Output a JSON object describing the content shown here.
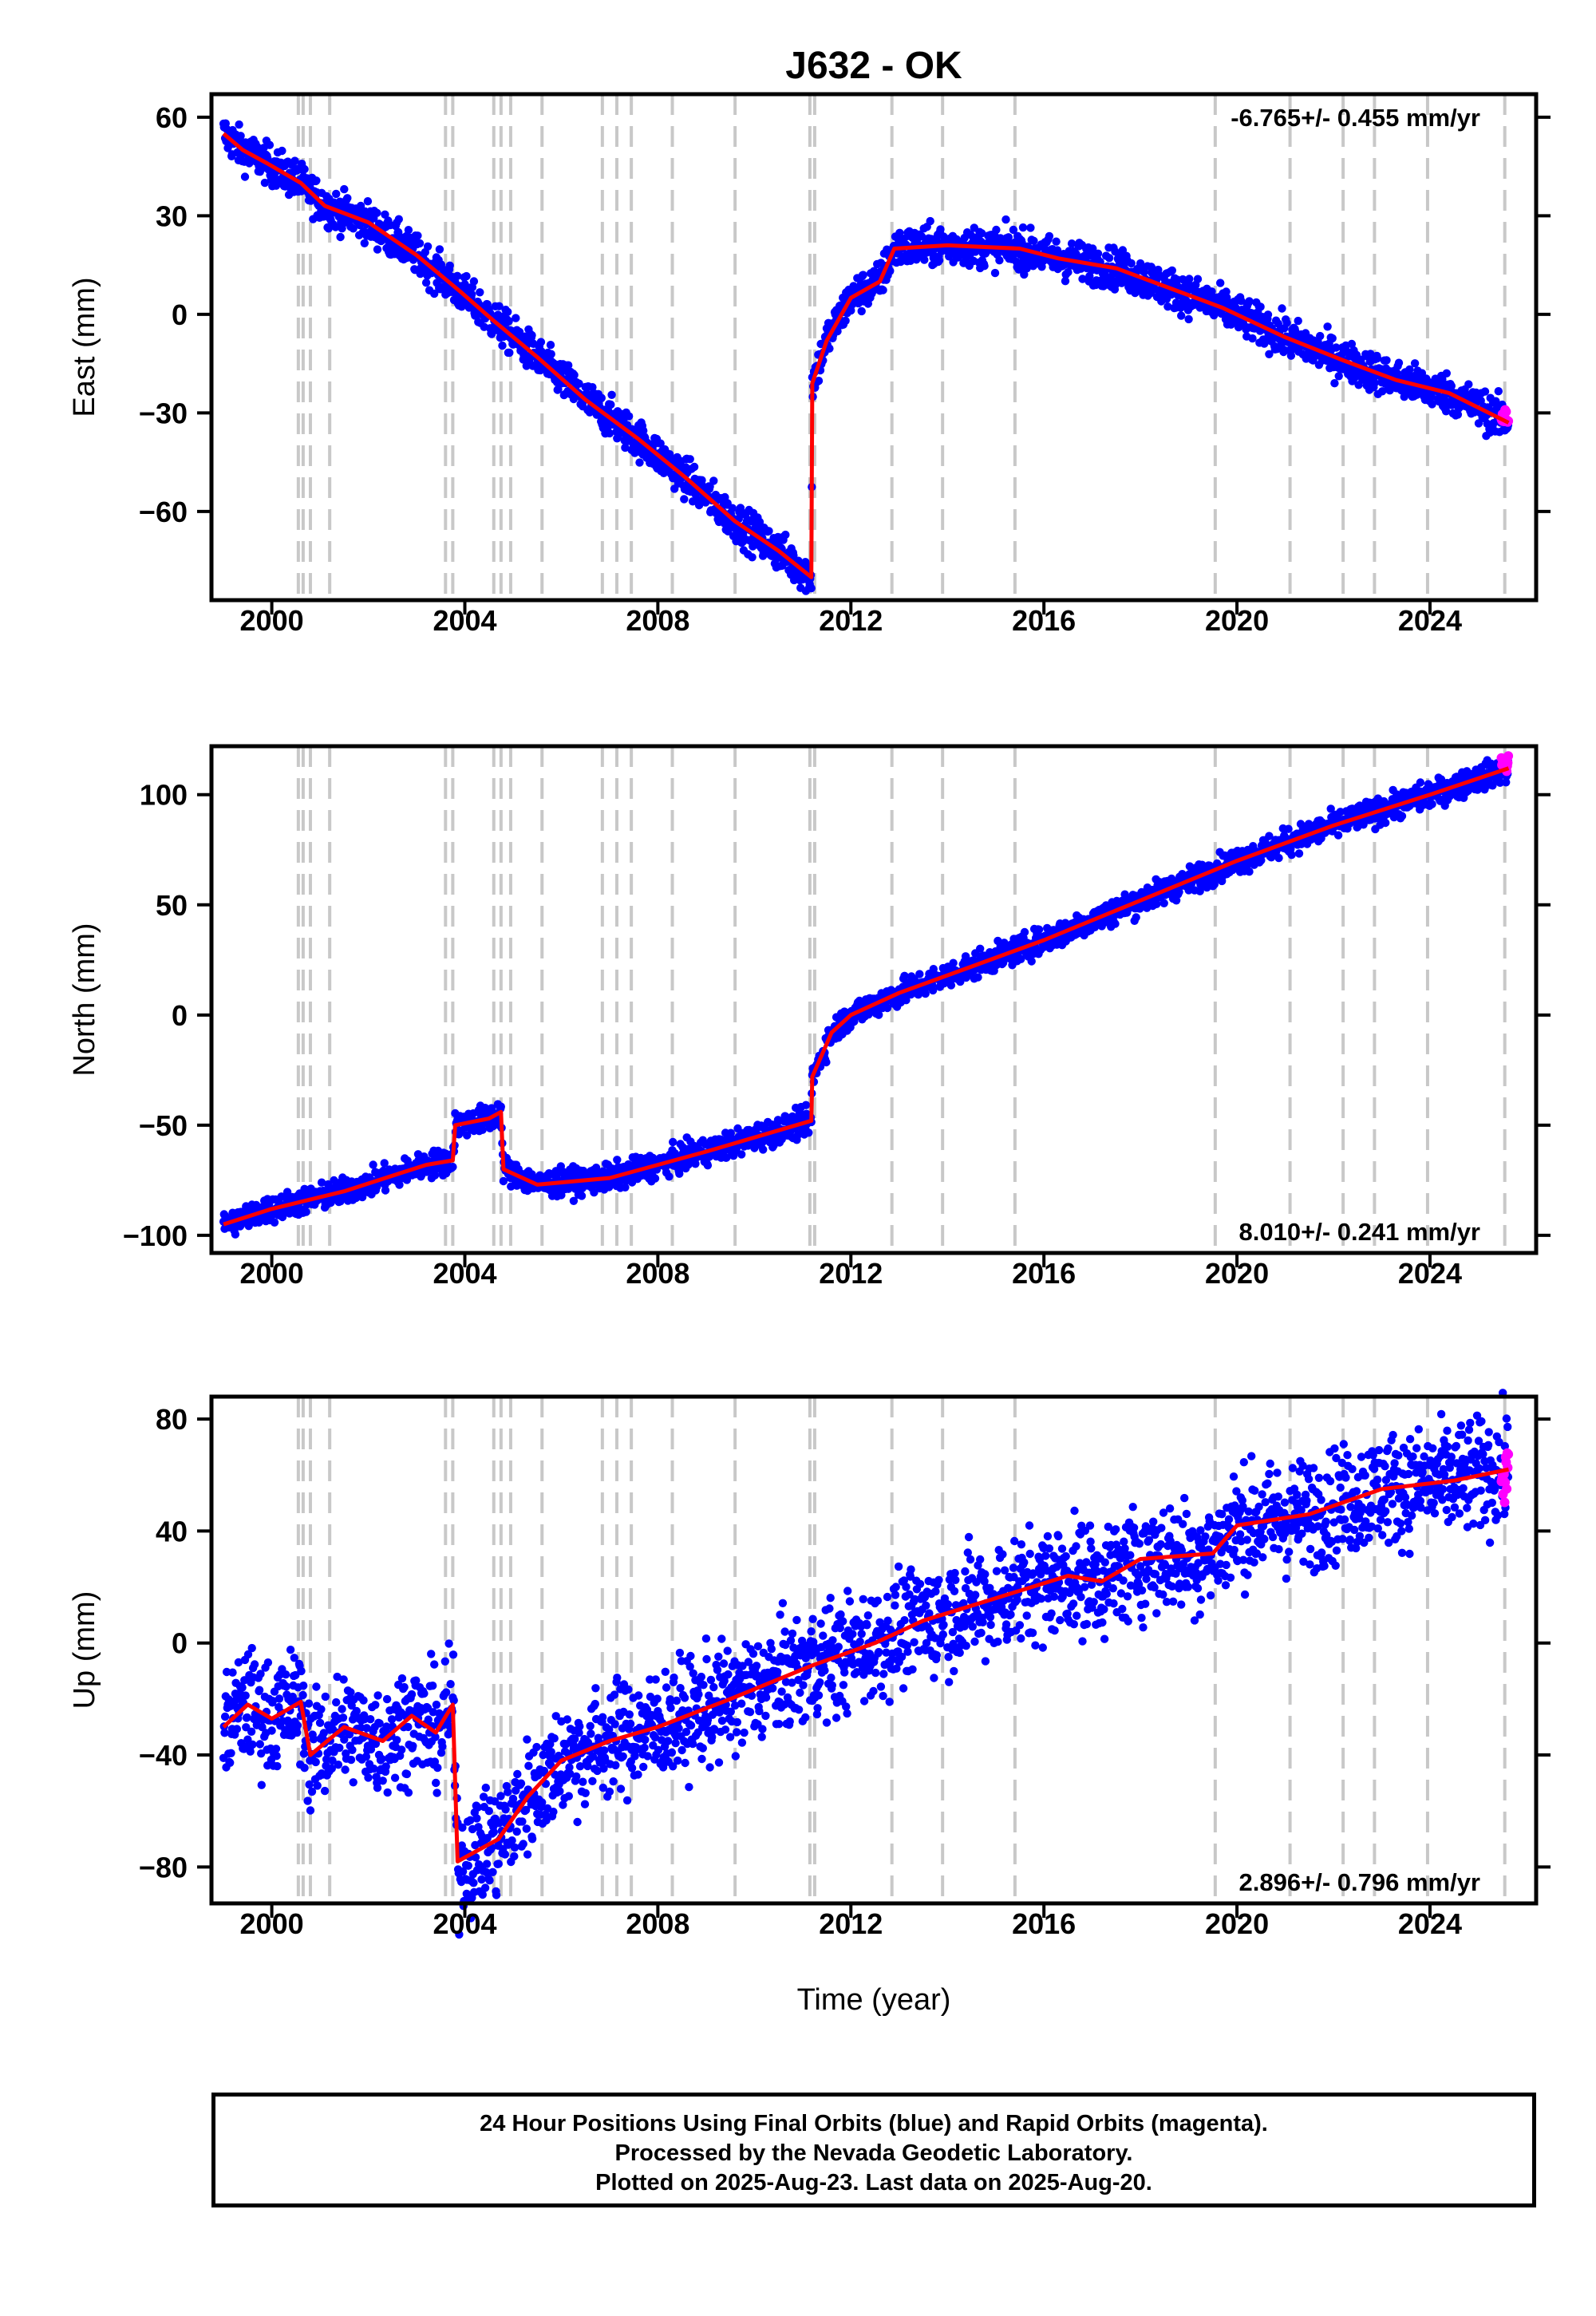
{
  "title": "J632 - OK",
  "xlabel": "Time (year)",
  "x_ticks": [
    "2000",
    "2004",
    "2008",
    "2012",
    "2016",
    "2020",
    "2024"
  ],
  "footer": {
    "line1": "24 Hour Positions Using Final Orbits (blue) and Rapid Orbits (magenta).",
    "line2": "Processed by the Nevada Geodetic Laboratory.",
    "line3": "Plotted on 2025-Aug-23. Last data on 2025-Aug-20."
  },
  "colors": {
    "final_orbits": "#0000ff",
    "rapid_orbits": "#ff00ff",
    "model": "#ff0000",
    "steps": "#c8c8c8"
  },
  "chart_data": [
    {
      "type": "scatter",
      "component": "east",
      "ylabel": "East (mm)",
      "rate_label": "-6.765+/- 0.455 mm/yr",
      "rate_position": "top-right",
      "xlim": [
        1998.75,
        2026.2
      ],
      "ylim": [
        -87,
        67
      ],
      "y_ticks": [
        60,
        30,
        0,
        -30,
        -60
      ],
      "y_tick_labels": [
        "60",
        "30",
        "0",
        "−30",
        "−60"
      ],
      "step_epochs": [
        2000.55,
        2000.65,
        2000.8,
        2001.2,
        2003.6,
        2003.75,
        2004.6,
        2004.75,
        2004.95,
        2005.6,
        2006.85,
        2007.15,
        2007.45,
        2008.3,
        2009.6,
        2011.15,
        2011.25,
        2012.85,
        2013.9,
        2015.4,
        2019.55,
        2021.1,
        2022.2,
        2022.85,
        2023.95,
        2025.55
      ],
      "model": [
        [
          1999.0,
          55
        ],
        [
          1999.4,
          50
        ],
        [
          1999.9,
          46
        ],
        [
          2000.6,
          40
        ],
        [
          2001.1,
          33
        ],
        [
          2002.0,
          28
        ],
        [
          2003.0,
          18
        ],
        [
          2003.9,
          7
        ],
        [
          2004.6,
          -2
        ],
        [
          2005.5,
          -13
        ],
        [
          2006.5,
          -26
        ],
        [
          2007.6,
          -38
        ],
        [
          2008.6,
          -50
        ],
        [
          2009.6,
          -63
        ],
        [
          2010.5,
          -72
        ],
        [
          2011.18,
          -80
        ],
        [
          2011.2,
          -21
        ],
        [
          2011.5,
          -8
        ],
        [
          2012.0,
          5
        ],
        [
          2012.6,
          10
        ],
        [
          2012.9,
          20
        ],
        [
          2014.0,
          21
        ],
        [
          2015.5,
          20
        ],
        [
          2016.3,
          17
        ],
        [
          2017.5,
          14
        ],
        [
          2018.6,
          8
        ],
        [
          2019.7,
          2
        ],
        [
          2021.0,
          -7
        ],
        [
          2022.2,
          -14
        ],
        [
          2023.3,
          -20
        ],
        [
          2024.4,
          -24
        ],
        [
          2025.63,
          -33
        ]
      ],
      "scatter_spread": 3,
      "last_value": -31
    },
    {
      "type": "scatter",
      "component": "north",
      "ylabel": "North (mm)",
      "rate_label": "8.010+/- 0.241 mm/yr",
      "rate_position": "bottom-right",
      "xlim": [
        1998.75,
        2026.2
      ],
      "ylim": [
        -108,
        122
      ],
      "y_ticks": [
        100,
        50,
        0,
        -50,
        -100
      ],
      "y_tick_labels": [
        "100",
        "50",
        "0",
        "−50",
        "−100"
      ],
      "step_epochs": [
        2000.55,
        2000.65,
        2000.8,
        2001.2,
        2003.6,
        2003.75,
        2004.6,
        2004.75,
        2004.95,
        2005.6,
        2006.85,
        2007.15,
        2007.45,
        2008.3,
        2009.6,
        2011.15,
        2011.25,
        2012.85,
        2013.9,
        2015.4,
        2019.55,
        2021.1,
        2022.2,
        2022.85,
        2023.95,
        2025.55
      ],
      "model": [
        [
          1999.0,
          -95
        ],
        [
          2000.0,
          -88
        ],
        [
          2001.5,
          -80
        ],
        [
          2003.2,
          -68
        ],
        [
          2003.75,
          -66
        ],
        [
          2003.8,
          -50
        ],
        [
          2004.5,
          -47
        ],
        [
          2004.75,
          -44
        ],
        [
          2004.8,
          -70
        ],
        [
          2005.5,
          -77
        ],
        [
          2007.0,
          -74
        ],
        [
          2009.0,
          -62
        ],
        [
          2011.18,
          -48
        ],
        [
          2011.2,
          -28
        ],
        [
          2011.6,
          -8
        ],
        [
          2012.0,
          0
        ],
        [
          2013.0,
          10
        ],
        [
          2014.5,
          22
        ],
        [
          2016.0,
          34
        ],
        [
          2018.0,
          52
        ],
        [
          2020.0,
          70
        ],
        [
          2022.0,
          86
        ],
        [
          2024.0,
          100
        ],
        [
          2025.63,
          112
        ]
      ],
      "scatter_spread": 3,
      "last_value": 114
    },
    {
      "type": "scatter",
      "component": "up",
      "ylabel": "Up (mm)",
      "rate_label": "2.896+/- 0.796 mm/yr",
      "rate_position": "bottom-right",
      "xlim": [
        1998.75,
        2026.2
      ],
      "ylim": [
        -93,
        88
      ],
      "y_ticks": [
        80,
        40,
        0,
        -40,
        -80
      ],
      "y_tick_labels": [
        "80",
        "40",
        "0",
        "−40",
        "−80"
      ],
      "step_epochs": [
        2000.55,
        2000.65,
        2000.8,
        2001.2,
        2003.6,
        2003.75,
        2004.6,
        2004.75,
        2004.95,
        2005.6,
        2006.85,
        2007.15,
        2007.45,
        2008.3,
        2009.6,
        2011.15,
        2011.25,
        2012.85,
        2013.9,
        2015.4,
        2019.55,
        2021.1,
        2022.2,
        2022.85,
        2023.95,
        2025.55
      ],
      "model": [
        [
          1999.0,
          -30
        ],
        [
          1999.5,
          -22
        ],
        [
          2000.0,
          -27
        ],
        [
          2000.6,
          -21
        ],
        [
          2000.8,
          -40
        ],
        [
          2001.5,
          -30
        ],
        [
          2002.3,
          -35
        ],
        [
          2002.9,
          -26
        ],
        [
          2003.4,
          -32
        ],
        [
          2003.75,
          -22
        ],
        [
          2003.85,
          -78
        ],
        [
          2004.7,
          -70
        ],
        [
          2005.3,
          -55
        ],
        [
          2006.0,
          -42
        ],
        [
          2007.0,
          -35
        ],
        [
          2008.0,
          -30
        ],
        [
          2009.5,
          -20
        ],
        [
          2011.2,
          -8
        ],
        [
          2012.5,
          0
        ],
        [
          2013.5,
          8
        ],
        [
          2015.0,
          16
        ],
        [
          2016.5,
          24
        ],
        [
          2017.2,
          22
        ],
        [
          2018.0,
          30
        ],
        [
          2019.5,
          32
        ],
        [
          2020.0,
          42
        ],
        [
          2021.5,
          46
        ],
        [
          2023.0,
          55
        ],
        [
          2024.5,
          58
        ],
        [
          2025.63,
          62
        ]
      ],
      "scatter_spread": 10,
      "last_value": 60
    }
  ]
}
